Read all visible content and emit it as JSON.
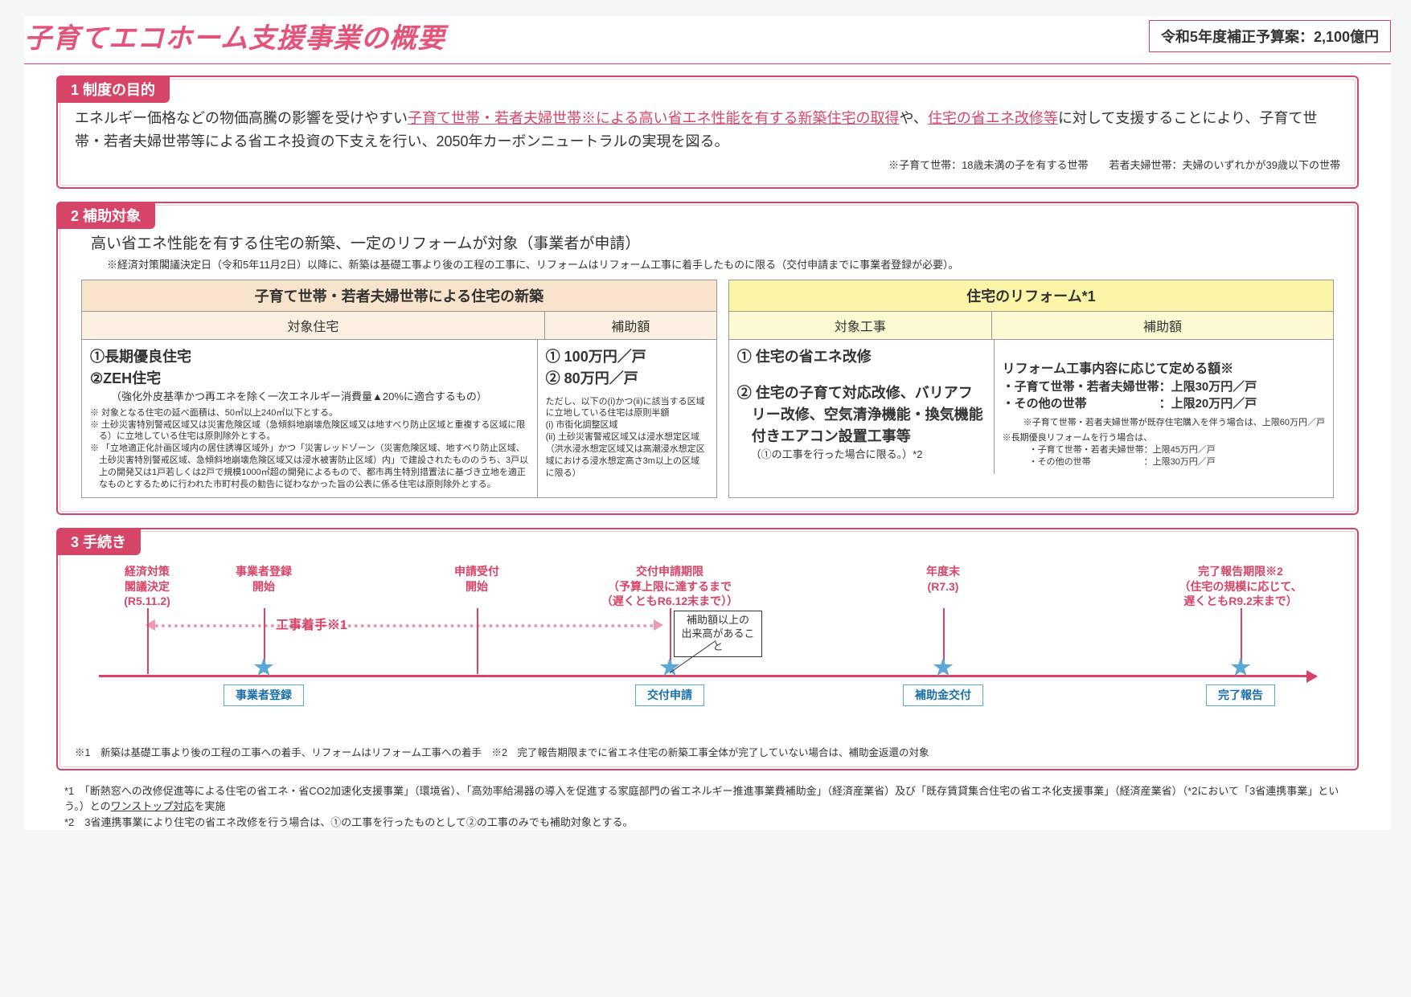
{
  "title": "子育てエコホーム支援事業の概要",
  "budget": "令和5年度補正予算案：2,100億円",
  "sec1": {
    "tab": "1 制度の目的",
    "t1": "エネルギー価格などの物価高騰の影響を受けやすい",
    "t2": "子育て世帯・若者夫婦世帯※による高い省エネ性能を有する新築住宅の取得",
    "t3": "や、",
    "t4": "住宅の省エネ改修等",
    "t5": "に対して支援することにより、子育て世帯・若者夫婦世帯等による省エネ投資の下支えを行い、2050年カーボンニュートラルの実現を図る。",
    "note": "※子育て世帯：18歳未満の子を有する世帯　　若者夫婦世帯：夫婦のいずれかが39歳以下の世帯"
  },
  "sec2": {
    "tab": "2 補助対象",
    "lead": "高い省エネ性能を有する住宅の新築、一定のリフォームが対象（事業者が申請）",
    "note": "※経済対策閣議決定日（令和5年11月2日）以降に、新築は基礎工事より後の工程の工事に、リフォームはリフォーム工事に着手したものに限る（交付申請までに事業者登録が必要）。",
    "t1": {
      "hdr": "子育て世帯・若者夫婦世帯による住宅の新築",
      "th1": "対象住宅",
      "th2": "補助額",
      "c1a": "①長期優良住宅",
      "c1b": "②ZEH住宅",
      "c1c": "（強化外皮基準かつ再エネを除く一次エネルギー消費量▲20%に適合するもの）",
      "c1d": "※ 対象となる住宅の延べ面積は、50㎡以上240㎡以下とする。",
      "c1e": "※ 土砂災害特別警戒区域又は災害危険区域（急傾斜地崩壊危険区域又は地すべり防止区域と重複する区域に限る）に立地している住宅は原則除外とする。",
      "c1f": "※ 「立地適正化計画区域内の居住誘導区域外」かつ「災害レッドゾーン（災害危険区域、地すべり防止区域、土砂災害特別警戒区域、急傾斜地崩壊危険区域又は浸水被害防止区域）内」で建設されたもののうち、3戸以上の開発又は1戸若しくは2戸で規模1000㎡超の開発によるもので、都市再生特別措置法に基づき立地を適正なものとするために行われた市町村長の勧告に従わなかった旨の公表に係る住宅は原則除外とする。",
      "c2a": "① 100万円／戸",
      "c2b": "②  80万円／戸",
      "c2c": "ただし、以下の(i)かつ(ii)に該当する区域に立地している住宅は原則半額",
      "c2d": "(i)  市街化調整区域",
      "c2e": "(ii) 土砂災害警戒区域又は浸水想定区域（洪水浸水想定区域又は高潮浸水想定区域における浸水想定高さ3m以上の区域に限る）"
    },
    "t2": {
      "hdr": "住宅のリフォーム*1",
      "th1": "対象工事",
      "th2": "補助額",
      "c1a": "① 住宅の省エネ改修",
      "c1b": "② 住宅の子育て対応改修、バリアフリー改修、空気清浄機能・換気機能付きエアコン設置工事等",
      "c1c": "（①の工事を行った場合に限る。）*2",
      "c2a": "リフォーム工事内容に応じて定める額※",
      "c2b": "・子育て世帯・若者夫婦世帯：上限30万円／戸",
      "c2c": "・その他の世帯　　　　　　：上限20万円／戸",
      "c2d": "※子育て世帯・若者夫婦世帯が既存住宅購入を伴う場合は、上限60万円／戸",
      "c2e": "※長期優良リフォームを行う場合は、",
      "c2f": "・子育て世帯・若者夫婦世帯：上限45万円／戸",
      "c2g": "・その他の世帯　　　　　　：上限30万円／戸"
    }
  },
  "sec3": {
    "tab": "3 手続き",
    "items": [
      {
        "top": "経済対策\n閣議決定\n(R5.11.2)"
      },
      {
        "top": "事業者登録\n開始",
        "tag": "事業者登録"
      },
      {
        "top": "申請受付\n開始"
      },
      {
        "top": "交付申請期限\n（予算上限に達するまで\n（遅くともR6.12末まで））",
        "tag": "交付申請",
        "callout": "補助額以上の\n出来高があること"
      },
      {
        "top": "年度末\n(R7.3)",
        "tag": "補助金交付"
      },
      {
        "top": "完了報告期限※2\n（住宅の規模に応じて、\n遅くともR9.2末まで）",
        "tag": "完了報告"
      }
    ],
    "dash": "工事着手※1",
    "fn": "※1　新築は基礎工事より後の工程の工事への着手、リフォームはリフォーム工事への着手　※2　完了報告期限までに省エネ住宅の新築工事全体が完了していない場合は、補助金返還の対象"
  },
  "footer": {
    "f1a": "*1　「断熱窓への改修促進等による住宅の省エネ・省CO2加速化支援事業」（環境省）、「高効率給湯器の導入を促進する家庭部門の省エネルギー推進事業費補助金」（経済産業省）及び「既存賃貸集合住宅の省エネ化支援事業」（経済産業省）（*2において「3省連携事業」という。）との",
    "f1b": "ワンストップ対応",
    "f1c": "を実施",
    "f2": "*2　3省連携事業により住宅の省エネ改修を行う場合は、①の工事を行ったものとして②の工事のみでも補助対象とする。"
  }
}
